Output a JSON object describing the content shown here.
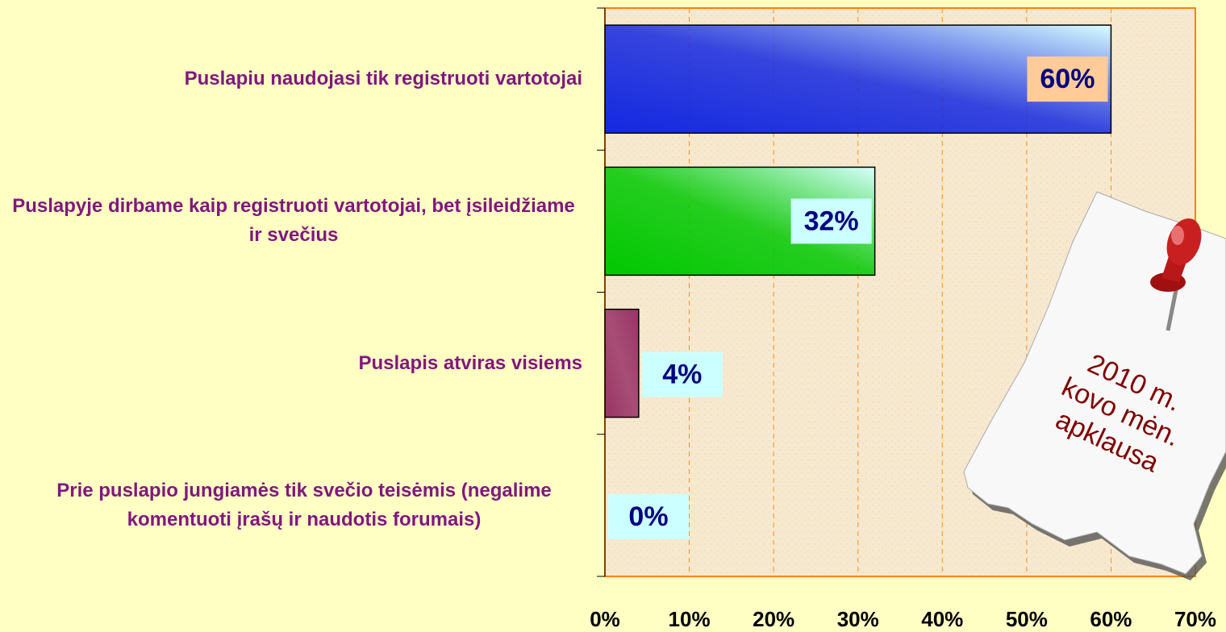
{
  "chart_data": {
    "type": "hbar",
    "categories": [
      "Puslapiu naudojasi tik registruoti vartotojai",
      "Puslapyje dirbame kaip registruoti vartotojai, bet įsileidžiame ir svečius",
      "Puslapis atviras visiems",
      "Prie puslapio jungiamės tik svečio teisėmis (negalime komentuoti įrašų ir naudotis forumais)"
    ],
    "values": [
      60,
      32,
      4,
      0
    ],
    "value_labels": [
      "60%",
      "32%",
      "4%",
      "0%"
    ],
    "colors": [
      "#1428e0",
      "#00c800",
      "#993366",
      "#ffcc99"
    ],
    "xlim": [
      0,
      70
    ],
    "xticks": [
      {
        "value": 0,
        "label": "0%"
      },
      {
        "value": 10,
        "label": "10%"
      },
      {
        "value": 20,
        "label": "20%"
      },
      {
        "value": 30,
        "label": "30%"
      },
      {
        "value": 40,
        "label": "40%"
      },
      {
        "value": 50,
        "label": "50%"
      },
      {
        "value": 60,
        "label": "60%"
      },
      {
        "value": 70,
        "label": "70%"
      }
    ],
    "grid": true,
    "annotations": [
      "2010 m.",
      "kovo mėn.",
      "apklausa"
    ]
  }
}
